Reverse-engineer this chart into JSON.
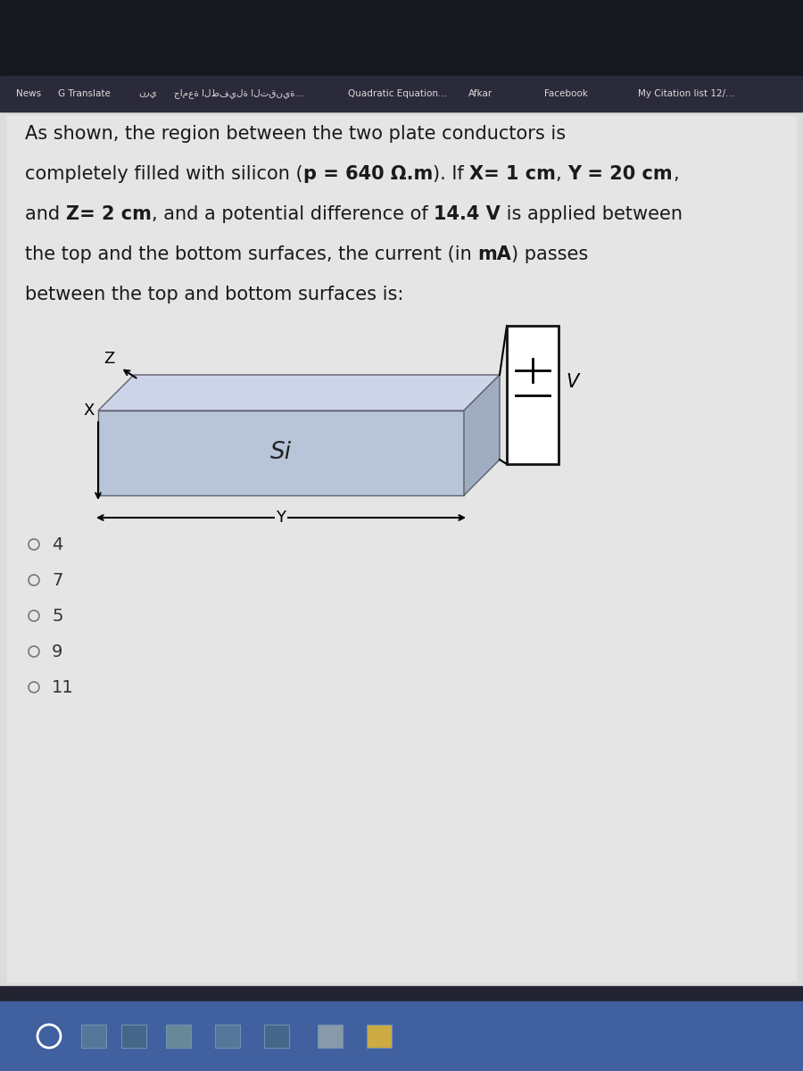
{
  "bg_top_dark": "#181820",
  "bg_toolbar": "#252535",
  "bg_content": "#dcdcdc",
  "bg_wave": "#d0d0d0",
  "content_text_color": "#1a1a1a",
  "toolbar_labels": [
    "News",
    "G Translate",
    "نري",
    "جامعة الطفيلة التقنية...",
    "Quadratic Equation...",
    "Afkar",
    "Facebook",
    "My Citation list 12/..."
  ],
  "toolbar_x": [
    18,
    65,
    155,
    195,
    390,
    525,
    610,
    715
  ],
  "box_front_color": "#b8c4d8",
  "box_top_color": "#ccd4e8",
  "box_right_color": "#a0acbf",
  "conductor_fill": "#ffffff",
  "conductor_border": "#111111",
  "si_label": "Si",
  "voltage_label": "V",
  "x_label": "X",
  "y_label": "Y",
  "z_label": "Z",
  "choices": [
    "4",
    "7",
    "5",
    "9",
    "11"
  ],
  "taskbar_bg": "#4060a0",
  "taskbar_dark": "#304880"
}
